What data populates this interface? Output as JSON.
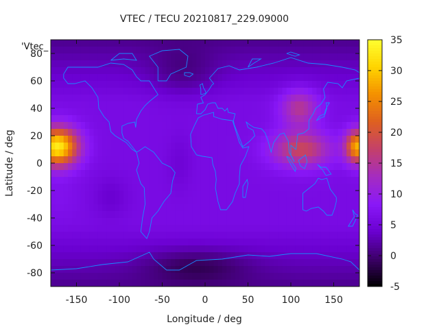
{
  "chart_data": {
    "type": "heatmap",
    "title": "VTEC / TECU 20210817_229.09000",
    "xlabel": "Longitude / deg",
    "ylabel": "Latitude / deg",
    "key_label": "'Vtec_",
    "xlim": [
      -180,
      180
    ],
    "ylim": [
      -90,
      90
    ],
    "x_ticks": [
      -150,
      -100,
      -50,
      0,
      50,
      100,
      150
    ],
    "y_ticks": [
      -80,
      -60,
      -40,
      -20,
      0,
      20,
      40,
      60,
      80
    ],
    "colorbar": {
      "range": [
        -5,
        35
      ],
      "ticks": [
        -5,
        0,
        5,
        10,
        15,
        20,
        25,
        30,
        35
      ],
      "palette": [
        "#000000",
        "#3c0068",
        "#6a00d0",
        "#8a18f8",
        "#a42cc0",
        "#c4406a",
        "#de6020",
        "#f49000",
        "#ffd400",
        "#ffff30"
      ]
    },
    "grid": false,
    "coastline_color": "#1a8cff",
    "tec_hotspots": [
      {
        "lon": -172,
        "lat": 12,
        "value": 33,
        "sigma_lon": 24,
        "sigma_lat": 14
      },
      {
        "lon": 178,
        "lat": 12,
        "value": 28,
        "sigma_lon": 14,
        "sigma_lat": 12
      },
      {
        "lon": 112,
        "lat": 10,
        "value": 18,
        "sigma_lon": 35,
        "sigma_lat": 13
      },
      {
        "lon": 110,
        "lat": 40,
        "value": 15,
        "sigma_lon": 22,
        "sigma_lat": 14
      },
      {
        "lon": -170,
        "lat": -25,
        "value": 7,
        "sigma_lon": 22,
        "sigma_lat": 16
      },
      {
        "lon": 145,
        "lat": -25,
        "value": 6,
        "sigma_lon": 25,
        "sigma_lat": 14
      }
    ],
    "background_value": 6
  }
}
